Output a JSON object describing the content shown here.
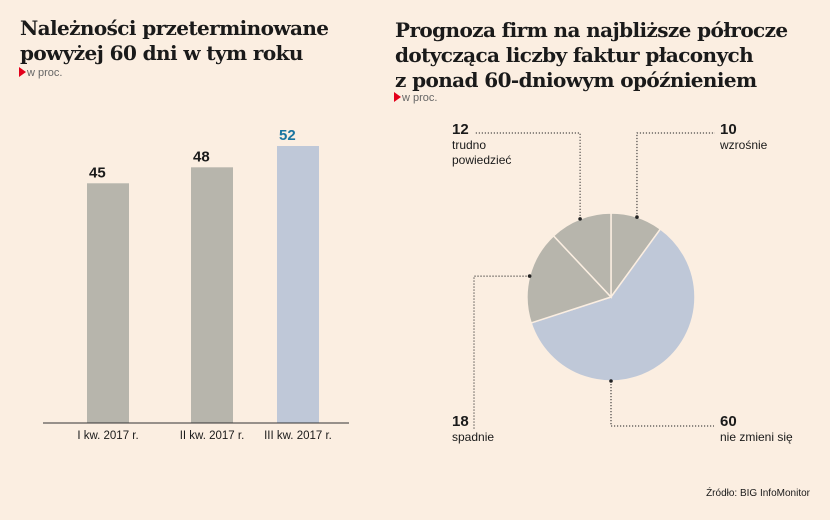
{
  "chart_data": [
    {
      "type": "bar",
      "title": "Należności przeterminowane powyżej 60 dni w tym roku",
      "title_lines": [
        "Należności przeterminowane",
        "powyżej 60 dni w tym roku"
      ],
      "unit": "w proc.",
      "categories": [
        "I kw. 2017 r.",
        "II kw. 2017 r.",
        "III kw. 2017 r."
      ],
      "values": [
        45,
        48,
        52
      ],
      "value_labels": [
        "45",
        "48",
        "52"
      ],
      "colors": [
        "#b7b5ac",
        "#b7b5ac",
        "#bfc8d8"
      ],
      "label_colors": [
        "#1a1a1a",
        "#1a1a1a",
        "#1a75a0"
      ],
      "ylim": [
        0,
        52
      ]
    },
    {
      "type": "pie",
      "title": "Prognoza firm na najbliższe półrocze dotycząca liczby faktur płaconych z ponad 60-dniowym opóźnieniem",
      "title_lines": [
        "Prognoza firm na najbliższe półrocze",
        "dotycząca liczby faktur płaconych",
        "z ponad 60-dniowym opóźnieniem"
      ],
      "unit": "w proc.",
      "slices": [
        {
          "label": "wzrośnie",
          "value": 10,
          "value_label": "10",
          "color": "#b7b5ac"
        },
        {
          "label": "nie zmieni się",
          "value": 60,
          "value_label": "60",
          "color": "#bfc8d8"
        },
        {
          "label": "spadnie",
          "value": 18,
          "value_label": "18",
          "color": "#b7b5ac"
        },
        {
          "label": "trudno powiedzieć",
          "label_lines": [
            "trudno",
            "powiedzieć"
          ],
          "value": 12,
          "value_label": "12",
          "color": "#b7b5ac"
        }
      ]
    }
  ],
  "source": "Źródło: BIG InfoMonitor"
}
